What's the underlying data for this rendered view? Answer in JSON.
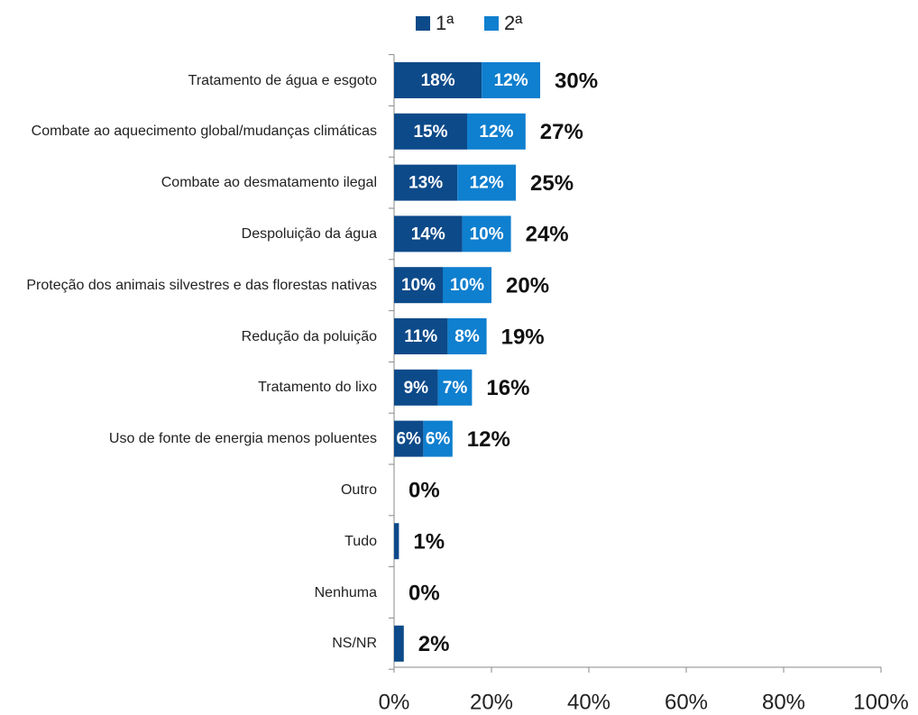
{
  "chart_data": {
    "type": "stacked_barh",
    "categories": [
      "Tratamento de água e esgoto",
      "Combate ao aquecimento global/mudanças climáticas",
      "Combate ao desmatamento ilegal",
      "Despoluição da água",
      "Proteção dos animais silvestres e das florestas nativas",
      "Redução da poluição",
      "Tratamento do lixo",
      "Uso de fonte de energia menos poluentes",
      "Outro",
      "Tudo",
      "Nenhuma",
      "NS/NR"
    ],
    "series": [
      {
        "name": "1ª",
        "color": "#0d4a89",
        "values": [
          18,
          15,
          13,
          14,
          10,
          11,
          9,
          6,
          0,
          1,
          0,
          2
        ],
        "value_labels": [
          "18%",
          "15%",
          "13%",
          "14%",
          "10%",
          "11%",
          "9%",
          "6%",
          null,
          null,
          null,
          null
        ]
      },
      {
        "name": "2ª",
        "color": "#0f7fcf",
        "values": [
          12,
          12,
          12,
          10,
          10,
          8,
          7,
          6,
          0,
          0,
          0,
          0
        ],
        "value_labels": [
          "12%",
          "12%",
          "12%",
          "10%",
          "10%",
          "8%",
          "7%",
          "6%",
          null,
          null,
          null,
          null
        ]
      }
    ],
    "totals": [
      30,
      27,
      25,
      24,
      20,
      19,
      16,
      12,
      0,
      1,
      0,
      2
    ],
    "total_labels": [
      "30%",
      "27%",
      "25%",
      "24%",
      "20%",
      "19%",
      "16%",
      "12%",
      "0%",
      "1%",
      "0%",
      "2%"
    ],
    "xlim": [
      0,
      100
    ],
    "xticks": [
      {
        "value": 0,
        "label": "0%"
      },
      {
        "value": 20,
        "label": "20%"
      },
      {
        "value": 40,
        "label": "40%"
      },
      {
        "value": 60,
        "label": "60%"
      },
      {
        "value": 80,
        "label": "80%"
      },
      {
        "value": 100,
        "label": "100%"
      }
    ],
    "legend": "top"
  }
}
